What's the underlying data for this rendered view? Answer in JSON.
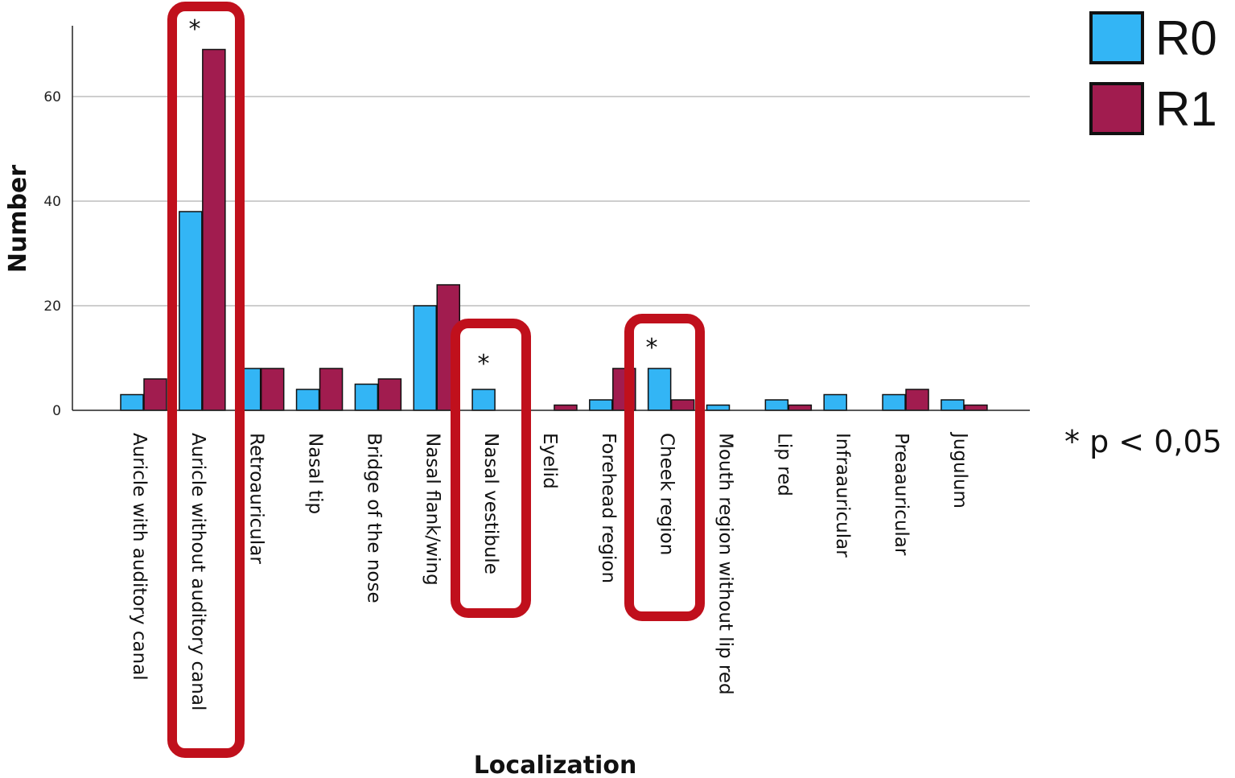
{
  "chart_data": {
    "type": "bar",
    "xlabel": "Localization",
    "ylabel": "Number",
    "ylim": [
      0,
      72
    ],
    "yticks": [
      0,
      20,
      40,
      60
    ],
    "grid": true,
    "legend_position": "top-right",
    "categories": [
      "Auricle with auditory canal",
      "Auricle without auditory canal",
      "Retroauricular",
      "Nasal tip",
      "Bridge of the nose",
      "Nasal flank/wing",
      "Nasal vestibule",
      "Eyelid",
      "Forehead region",
      "Cheek region",
      "Mouth region without lip red",
      "Lip red",
      "Infraauricular",
      "Preaauricular",
      "Jugulum"
    ],
    "series": [
      {
        "name": "R0",
        "color": "#33b5f5",
        "values": [
          3,
          38,
          8,
          4,
          5,
          20,
          4,
          0,
          2,
          8,
          1,
          2,
          3,
          3,
          2
        ]
      },
      {
        "name": "R1",
        "color": "#a11c4f",
        "values": [
          6,
          69,
          8,
          8,
          6,
          24,
          0,
          1,
          8,
          2,
          0,
          1,
          0,
          4,
          1
        ]
      }
    ],
    "highlighted_categories": [
      1,
      6,
      9
    ],
    "significance_marker": "*",
    "annotation": "* p < 0,05",
    "highlight_color": "#c0101c"
  }
}
